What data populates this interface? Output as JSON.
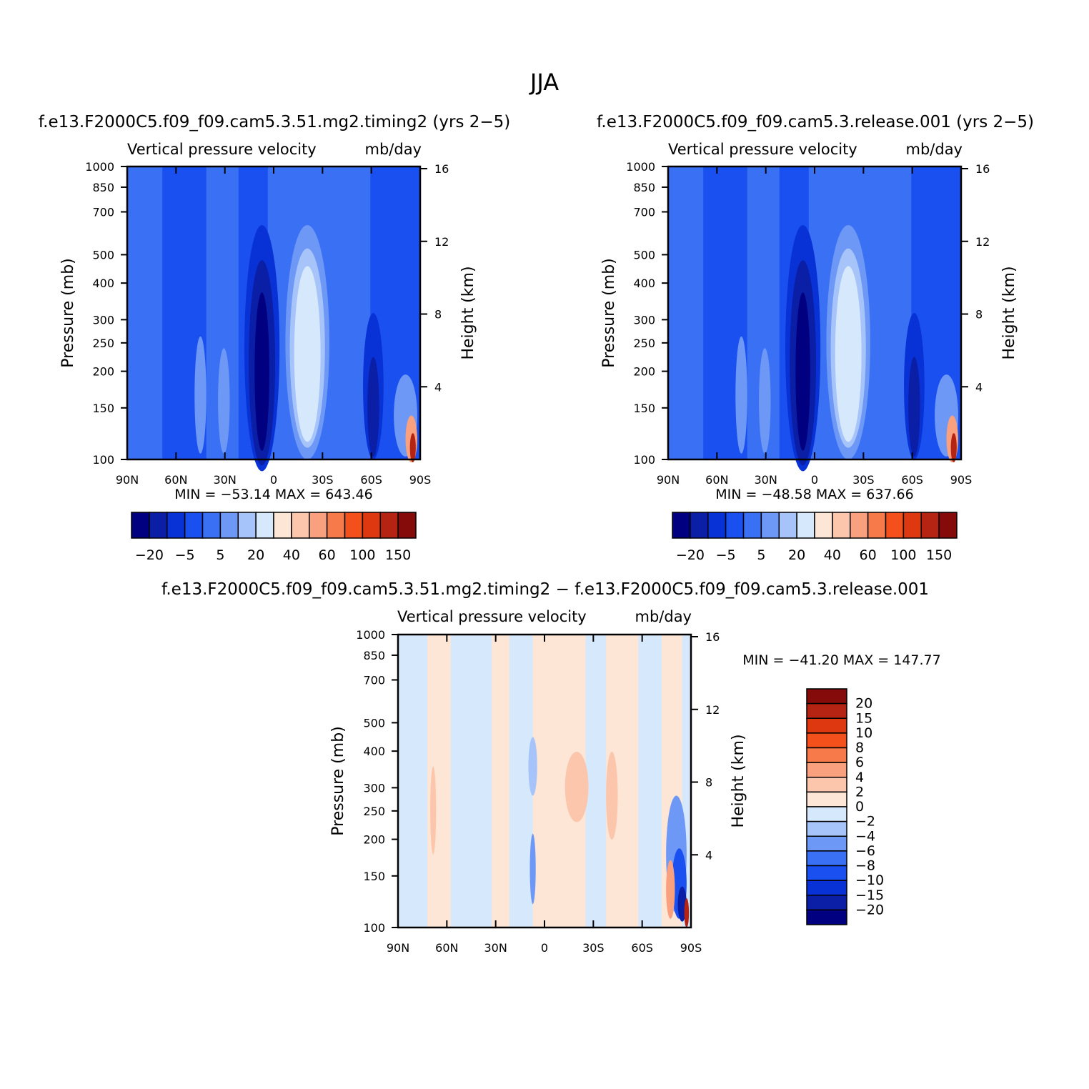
{
  "figure_title": "JJA",
  "colors": {
    "blue_seq": [
      "#000080",
      "#0a1ea6",
      "#0832d6",
      "#1a50f0",
      "#3a70f4",
      "#6e98f6",
      "#a6c4fa",
      "#d6e8fc"
    ],
    "red_seq": [
      "#fde6d6",
      "#fcc6ac",
      "#f9a07e",
      "#f77a4a",
      "#f4501c",
      "#de3810",
      "#b52412",
      "#850a0a"
    ]
  },
  "chart_data": [
    {
      "type": "heatmap",
      "panel_title": "f.e13.F2000C5.f09_f09.cam5.3.51.mg2.timing2 (yrs 2−5)",
      "variable": "Vertical pressure velocity",
      "units": "mb/day",
      "ylabel": "Pressure (mb)",
      "y2label": "Height (km)",
      "x_ticks": [
        "90N",
        "60N",
        "30N",
        "0",
        "30S",
        "60S",
        "90S"
      ],
      "y_ticks": [
        "100",
        "150",
        "200",
        "250",
        "300",
        "400",
        "500",
        "700",
        "850",
        "1000"
      ],
      "y2_ticks": [
        "16",
        "12",
        "8",
        "4"
      ],
      "min_max": "MIN = −53.14   MAX = 643.46",
      "colorbar_labels": [
        "−20",
        "−5",
        "5",
        "20",
        "40",
        "60",
        "100",
        "150"
      ],
      "colorbar_levels": [
        -20,
        -10,
        -5,
        -2,
        5,
        10,
        20,
        30,
        40,
        50,
        60,
        80,
        100,
        120,
        150
      ]
    },
    {
      "type": "heatmap",
      "panel_title": "f.e13.F2000C5.f09_f09.cam5.3.release.001 (yrs 2−5)",
      "variable": "Vertical pressure velocity",
      "units": "mb/day",
      "ylabel": "Pressure (mb)",
      "y2label": "Height (km)",
      "x_ticks": [
        "90N",
        "60N",
        "30N",
        "0",
        "30S",
        "60S",
        "90S"
      ],
      "y_ticks": [
        "100",
        "150",
        "200",
        "250",
        "300",
        "400",
        "500",
        "700",
        "850",
        "1000"
      ],
      "y2_ticks": [
        "16",
        "12",
        "8",
        "4"
      ],
      "min_max": "MIN = −48.58   MAX = 637.66",
      "colorbar_labels": [
        "−20",
        "−5",
        "5",
        "20",
        "40",
        "60",
        "100",
        "150"
      ],
      "colorbar_levels": [
        -20,
        -10,
        -5,
        -2,
        5,
        10,
        20,
        30,
        40,
        50,
        60,
        80,
        100,
        120,
        150
      ]
    },
    {
      "type": "heatmap",
      "panel_title": "f.e13.F2000C5.f09_f09.cam5.3.51.mg2.timing2 − f.e13.F2000C5.f09_f09.cam5.3.release.001",
      "variable": "Vertical pressure velocity",
      "units": "mb/day",
      "ylabel": "Pressure (mb)",
      "y2label": "Height (km)",
      "x_ticks": [
        "90N",
        "60N",
        "30N",
        "0",
        "30S",
        "60S",
        "90S"
      ],
      "y_ticks": [
        "100",
        "150",
        "200",
        "250",
        "300",
        "400",
        "500",
        "700",
        "850",
        "1000"
      ],
      "y2_ticks": [
        "16",
        "12",
        "8",
        "4"
      ],
      "min_max": "MIN = −41.20   MAX = 147.77",
      "colorbar_labels": [
        "20",
        "15",
        "10",
        "8",
        "6",
        "4",
        "2",
        "0",
        "−2",
        "−4",
        "−6",
        "−8",
        "−10",
        "−15",
        "−20"
      ],
      "colorbar_levels": [
        -20,
        -15,
        -10,
        -8,
        -6,
        -4,
        -2,
        0,
        2,
        4,
        6,
        8,
        10,
        15,
        20
      ]
    }
  ]
}
